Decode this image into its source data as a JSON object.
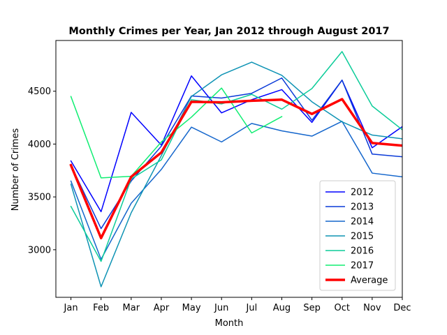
{
  "chart_data": {
    "type": "line",
    "title": "Monthly Crimes per Year, Jan 2012 through August 2017",
    "xlabel": "Month",
    "ylabel": "Number of Crimes",
    "categories": [
      "Jan",
      "Feb",
      "Mar",
      "Apr",
      "May",
      "Jun",
      "Jul",
      "Aug",
      "Sep",
      "Oct",
      "Nov",
      "Dec"
    ],
    "ylim": [
      2550,
      4980
    ],
    "yticks": [
      3000,
      3500,
      4000,
      4500
    ],
    "grid": false,
    "legend_position": "lower-right",
    "series": [
      {
        "name": "2012",
        "color": "#0000ff",
        "width": 1.5,
        "values": [
          3840,
          3360,
          4300,
          3990,
          4645,
          4295,
          4420,
          4515,
          4205,
          4605,
          3965,
          4165
        ]
      },
      {
        "name": "2013",
        "color": "#0a3ad8",
        "width": 1.5,
        "values": [
          3800,
          3200,
          3650,
          3980,
          4455,
          4435,
          4480,
          4625,
          4225,
          4605,
          3905,
          3880
        ]
      },
      {
        "name": "2014",
        "color": "#1466cc",
        "width": 1.5,
        "values": [
          3650,
          2910,
          3440,
          3760,
          4160,
          4020,
          4195,
          4125,
          4075,
          4215,
          3725,
          3690
        ]
      },
      {
        "name": "2015",
        "color": "#0e93b4",
        "width": 1.5,
        "values": [
          3620,
          2650,
          3350,
          3890,
          4450,
          4655,
          4775,
          4650,
          4400,
          4210,
          4085,
          4050
        ]
      },
      {
        "name": "2016",
        "color": "#0ccc99",
        "width": 1.5,
        "values": [
          3410,
          2890,
          3670,
          3850,
          4420,
          4380,
          4470,
          4330,
          4525,
          4875,
          4360,
          4135
        ]
      },
      {
        "name": "2017",
        "color": "#10ee72",
        "width": 1.5,
        "values": [
          4450,
          3680,
          3695,
          4020,
          4255,
          4530,
          4105,
          4260,
          null,
          null,
          null,
          null
        ]
      },
      {
        "name": "Average",
        "color": "#ff0000",
        "width": 3.5,
        "values": [
          3800,
          3110,
          3690,
          3920,
          4400,
          4395,
          4410,
          4420,
          4285,
          4425,
          4010,
          3985
        ]
      }
    ]
  }
}
